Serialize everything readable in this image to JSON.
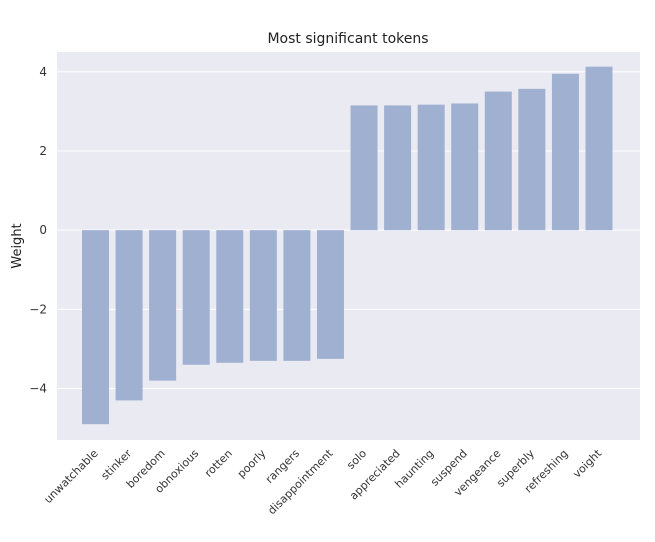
{
  "chart_data": {
    "type": "bar",
    "title": "Most significant tokens",
    "xlabel": "",
    "ylabel": "Weight",
    "categories": [
      "unwatchable",
      "stinker",
      "boredom",
      "obnoxious",
      "rotten",
      "poorly",
      "rangers",
      "disappointment",
      "solo",
      "appreciated",
      "haunting",
      "suspend",
      "vengeance",
      "superbly",
      "refreshing",
      "voight"
    ],
    "values": [
      -4.9,
      -4.3,
      -3.8,
      -3.4,
      -3.35,
      -3.3,
      -3.3,
      -3.25,
      3.15,
      3.15,
      3.17,
      3.2,
      3.5,
      3.57,
      3.95,
      4.13
    ],
    "yticks": [
      -4,
      -2,
      0,
      2,
      4
    ],
    "ytick_labels": [
      "−4",
      "−2",
      "0",
      "2",
      "4"
    ],
    "ylim": [
      -5.3,
      4.5
    ],
    "grid": true,
    "bar_color": "#9fb0d0",
    "background_color": "#eaeaf2",
    "grid_color": "#ffffff"
  }
}
